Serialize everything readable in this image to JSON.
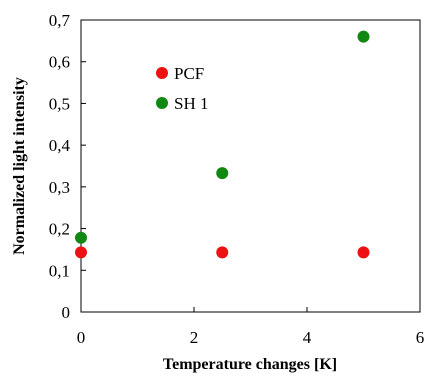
{
  "chart_data": {
    "type": "scatter",
    "xlabel": "Temperature changes [K]",
    "ylabel": "Normalized light intensity",
    "xlim": [
      0,
      6
    ],
    "ylim": [
      0,
      0.7
    ],
    "x_ticks": [
      "0",
      "2",
      "4",
      "6"
    ],
    "y_ticks": [
      "0",
      "0,1",
      "0,2",
      "0,3",
      "0,4",
      "0,5",
      "0,6",
      "0,7"
    ],
    "legend_position": "top-left",
    "grid": false,
    "series": [
      {
        "name": "PCF",
        "color": "#ee1111",
        "points": [
          [
            0,
            0.143
          ],
          [
            2.5,
            0.143
          ],
          [
            5,
            0.143
          ]
        ]
      },
      {
        "name": "SH 1",
        "color": "#118811",
        "points": [
          [
            0,
            0.178
          ],
          [
            2.5,
            0.333
          ],
          [
            5,
            0.66
          ]
        ]
      }
    ]
  }
}
